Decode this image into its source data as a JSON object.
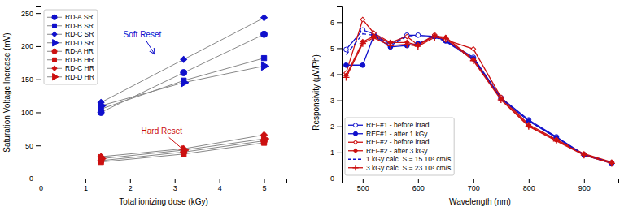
{
  "chart_data": [
    {
      "type": "line",
      "color": "#888888",
      "xlabel": "Total ionizing dose (kGy)",
      "ylabel": "Saturation Voltage Increase (mV)",
      "xlim": [
        0,
        5.5
      ],
      "ylim": [
        0,
        260
      ],
      "xticks": [
        0,
        1,
        2,
        3,
        4,
        5
      ],
      "yticks": [
        0,
        50,
        100,
        150,
        200,
        250
      ],
      "x": [
        1.35,
        3.2,
        5.0
      ],
      "series": [
        {
          "name": "RD-A SR",
          "color": "#1010cc",
          "marker": "circle",
          "line_style": "solid",
          "values": [
            100,
            160,
            218
          ]
        },
        {
          "name": "RD-B SR",
          "color": "#1010cc",
          "marker": "square",
          "line_style": "solid",
          "values": [
            105,
            148,
            182
          ]
        },
        {
          "name": "RD-C SR",
          "color": "#1010cc",
          "marker": "diamond",
          "line_style": "solid",
          "values": [
            115,
            180,
            243
          ]
        },
        {
          "name": "RD-D SR",
          "color": "#1010cc",
          "marker": "triangle-right",
          "line_style": "solid",
          "values": [
            110,
            145,
            170
          ]
        },
        {
          "name": "RD-A HR",
          "color": "#cc1010",
          "marker": "circle",
          "line_style": "solid",
          "values": [
            27,
            40,
            57
          ]
        },
        {
          "name": "RD-B HR",
          "color": "#cc1010",
          "marker": "square",
          "line_style": "solid",
          "values": [
            25,
            37,
            54
          ]
        },
        {
          "name": "RD-C HR",
          "color": "#cc1010",
          "marker": "diamond",
          "line_style": "solid",
          "values": [
            33,
            45,
            66
          ]
        },
        {
          "name": "RD-D HR",
          "color": "#cc1010",
          "marker": "triangle-right",
          "line_style": "solid",
          "values": [
            30,
            43,
            60
          ]
        }
      ],
      "legend": "upper left",
      "annotations": [
        {
          "text": "Soft Reset",
          "xy": [
            2.55,
            188
          ],
          "xytext": [
            1.85,
            213
          ],
          "color": "#1010cc"
        },
        {
          "text": "Hard Reset",
          "xy": [
            3.22,
            42
          ],
          "xytext": [
            2.25,
            67
          ],
          "color": "#cc1010"
        }
      ]
    },
    {
      "type": "line",
      "xlabel": "Wavelength (nm)",
      "ylabel": "Responsivity (μV/Ph)",
      "xlim": [
        462,
        962
      ],
      "ylim": [
        0,
        6.6
      ],
      "xticks": [
        500,
        600,
        700,
        800,
        900
      ],
      "yticks": [
        0,
        1,
        2,
        3,
        4,
        5,
        6
      ],
      "x": [
        470,
        500,
        520,
        550,
        580,
        600,
        630,
        650,
        700,
        750,
        800,
        850,
        900,
        950
      ],
      "series": [
        {
          "name": "REF#1 - before irrad.",
          "color": "#1010cc",
          "marker": "open-circle",
          "line_style": "solid",
          "values": [
            4.95,
            5.7,
            5.55,
            5.15,
            5.5,
            5.5,
            5.45,
            5.3,
            4.65,
            3.1,
            2.25,
            1.6,
            0.92,
            0.6
          ]
        },
        {
          "name": "REF#1 - after 1 kGy",
          "color": "#1010cc",
          "marker": "circle",
          "line_style": "solid",
          "values": [
            4.35,
            4.35,
            5.48,
            5.05,
            5.1,
            5.18,
            5.45,
            5.28,
            4.6,
            3.07,
            2.2,
            1.57,
            0.9,
            0.58
          ]
        },
        {
          "name": "REF#2 - before irrad.",
          "color": "#cc1010",
          "marker": "open-diamond",
          "line_style": "solid",
          "values": [
            4.05,
            6.1,
            5.58,
            5.22,
            5.45,
            5.12,
            5.52,
            5.32,
            4.97,
            3.12,
            2.07,
            1.5,
            0.95,
            0.63
          ]
        },
        {
          "name": "REF#2 - after 3 kGy",
          "color": "#cc1010",
          "marker": "diamond",
          "line_style": "solid",
          "values": [
            3.95,
            5.25,
            5.46,
            5.22,
            5.22,
            5.12,
            5.47,
            5.42,
            4.57,
            3.07,
            2.02,
            1.47,
            0.92,
            0.6
          ]
        },
        {
          "name": "1 kGy calc. S = 15.10³ cm/s",
          "color": "#1010cc",
          "line_style": "dashed",
          "values": [
            4.75,
            5.55,
            5.5,
            5.1,
            5.45,
            5.45,
            5.42,
            5.26,
            4.57,
            3.07,
            2.22,
            1.58,
            0.91,
            0.6
          ]
        },
        {
          "name": "3 kGy calc. S = 23.10³ cm/s",
          "color": "#cc1010",
          "marker": "plus",
          "line_style": "solid",
          "values": [
            3.88,
            5.18,
            5.4,
            5.1,
            5.15,
            5.07,
            5.42,
            5.37,
            4.52,
            3.02,
            2.0,
            1.44,
            0.9,
            0.58
          ]
        }
      ],
      "legend": "lower left"
    }
  ]
}
